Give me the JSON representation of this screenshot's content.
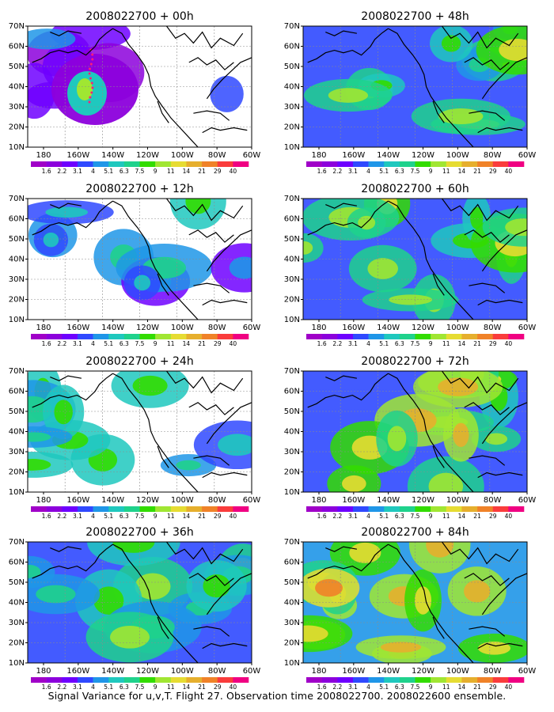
{
  "caption": "Signal Variance for u,v,T. Flight 27. Observation time 2008022700. 2008022600 ensemble.",
  "panels": [
    {
      "title": "2008022700 + 00h",
      "level": 0.18
    },
    {
      "title": "2008022700 + 12h",
      "level": 0.32
    },
    {
      "title": "2008022700 + 24h",
      "level": 0.42
    },
    {
      "title": "2008022700 + 36h",
      "level": 0.5
    },
    {
      "title": "2008022700 + 48h",
      "level": 0.52
    },
    {
      "title": "2008022700 + 60h",
      "level": 0.6
    },
    {
      "title": "2008022700 + 72h",
      "level": 0.68
    },
    {
      "title": "2008022700 + 84h",
      "level": 0.78
    }
  ],
  "lat_ticks": [
    "10N",
    "20N",
    "30N",
    "40N",
    "50N",
    "60N",
    "70N"
  ],
  "lon_ticks": [
    "180",
    "160W",
    "140W",
    "120W",
    "100W",
    "80W",
    "60W"
  ],
  "colorbar": {
    "labels": [
      "1.6",
      "2.2",
      "3.1",
      "4",
      "5.1",
      "6.3",
      "7.5",
      "9",
      "11",
      "14",
      "21",
      "29",
      "40"
    ],
    "colors": [
      "#a000c8",
      "#8c00dc",
      "#6e00ff",
      "#2f49ff",
      "#1f96e8",
      "#1fc8be",
      "#1fd28c",
      "#32dc00",
      "#a0e632",
      "#e6dc32",
      "#e6af2d",
      "#f08228",
      "#fa3c3c",
      "#f00082"
    ]
  }
}
